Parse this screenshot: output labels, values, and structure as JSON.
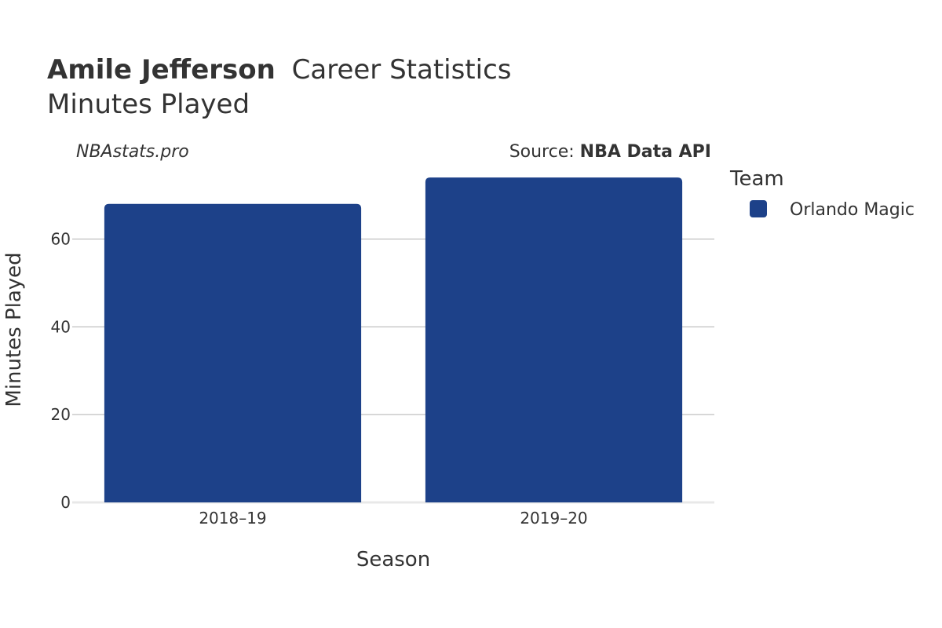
{
  "header": {
    "player_name": "Amile Jefferson",
    "title_rest": "Career Statistics",
    "subtitle": "Minutes Played"
  },
  "watermark": "NBAstats.pro",
  "source": {
    "prefix": "Source: ",
    "name": "NBA Data API"
  },
  "legend": {
    "title": "Team",
    "items": [
      {
        "label": "Orlando Magic",
        "color": "#1d4189"
      }
    ]
  },
  "chart_data": {
    "type": "bar",
    "categories": [
      "2018–19",
      "2019–20"
    ],
    "series": [
      {
        "name": "Orlando Magic",
        "values": [
          68,
          74
        ],
        "color": "#1d4189"
      }
    ],
    "xlabel": "Season",
    "ylabel": "Minutes Played",
    "ylim": [
      0,
      76
    ],
    "yticks": [
      0,
      20,
      40,
      60
    ],
    "grid": true,
    "legend_position": "right"
  }
}
